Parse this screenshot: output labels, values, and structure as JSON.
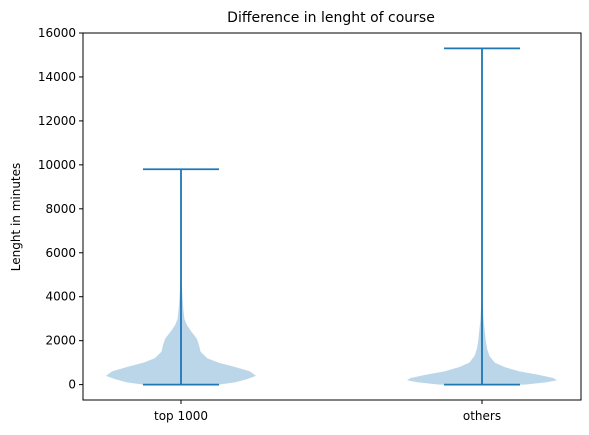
{
  "chart_data": {
    "type": "violin",
    "title": "Difference in lenght of course",
    "xlabel": "",
    "ylabel": "Lenght in minutes",
    "ylim": [
      -700,
      16000
    ],
    "yticks": [
      0,
      2000,
      4000,
      6000,
      8000,
      10000,
      12000,
      14000,
      16000
    ],
    "ytick_labels": [
      "0",
      "2000",
      "4000",
      "6000",
      "8000",
      "10000",
      "12000",
      "14000",
      "16000"
    ],
    "categories": [
      "top 1000",
      "others"
    ],
    "series": [
      {
        "name": "top 1000",
        "min": 0,
        "max": 9800,
        "density_profile": [
          [
            0,
            0.5
          ],
          [
            100,
            0.72
          ],
          [
            250,
            0.88
          ],
          [
            400,
            1.0
          ],
          [
            600,
            0.92
          ],
          [
            800,
            0.72
          ],
          [
            1000,
            0.5
          ],
          [
            1200,
            0.35
          ],
          [
            1500,
            0.26
          ],
          [
            1800,
            0.24
          ],
          [
            2100,
            0.21
          ],
          [
            2400,
            0.14
          ],
          [
            2700,
            0.08
          ],
          [
            3000,
            0.045
          ],
          [
            3500,
            0.03
          ],
          [
            4000,
            0.02
          ],
          [
            4500,
            0.012
          ],
          [
            5000,
            0.004
          ],
          [
            5500,
            0.001
          ],
          [
            9800,
            0.0
          ]
        ]
      },
      {
        "name": "others",
        "min": 0,
        "max": 15300,
        "density_profile": [
          [
            0,
            0.57
          ],
          [
            100,
            0.85
          ],
          [
            200,
            1.0
          ],
          [
            300,
            0.95
          ],
          [
            450,
            0.75
          ],
          [
            600,
            0.5
          ],
          [
            800,
            0.3
          ],
          [
            1000,
            0.17
          ],
          [
            1300,
            0.1
          ],
          [
            1600,
            0.07
          ],
          [
            2000,
            0.05
          ],
          [
            2500,
            0.035
          ],
          [
            3000,
            0.02
          ],
          [
            4000,
            0.006
          ],
          [
            15300,
            0.0
          ]
        ]
      }
    ],
    "colors": {
      "body_fill": "#1f77b4",
      "line": "#1f77b4"
    }
  }
}
